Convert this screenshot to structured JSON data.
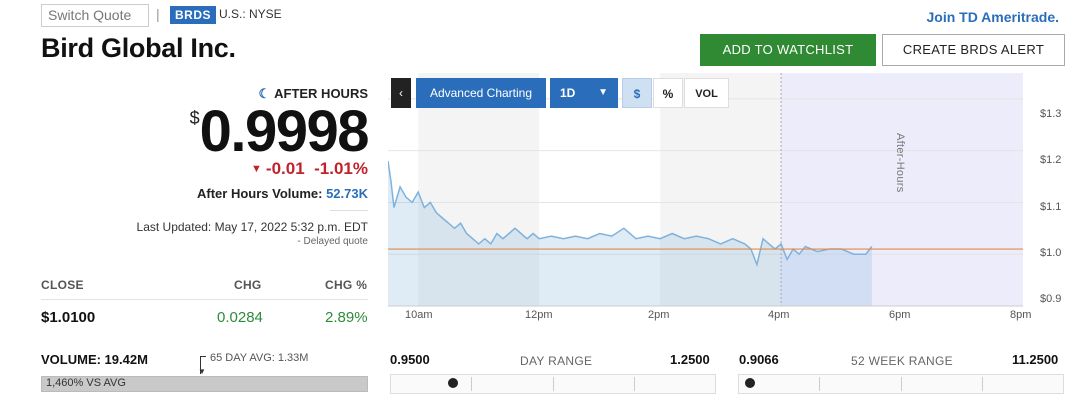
{
  "header": {
    "switch_quote_placeholder": "Switch Quote",
    "separator": "|",
    "ticker": "BRDS",
    "exchange": "U.S.: NYSE",
    "join_link": "Join TD Ameritrade."
  },
  "company": {
    "name": "Bird Global Inc."
  },
  "actions": {
    "watchlist_label": "ADD TO WATCHLIST",
    "alert_label": "CREATE BRDS ALERT",
    "watchlist_color": "#2f8a33"
  },
  "quote": {
    "session_label": "AFTER HOURS",
    "currency_symbol": "$",
    "price": "0.9998",
    "change": "-0.01",
    "change_pct": "-1.01%",
    "volume_label": "After Hours Volume:",
    "volume_value": "52.73K",
    "last_updated": "Last Updated: May 17, 2022 5:32 p.m. EDT",
    "delayed": "- Delayed quote",
    "down_color": "#c0232c"
  },
  "close_table": {
    "headers": [
      "CLOSE",
      "CHG",
      "CHG %"
    ],
    "values": [
      "$1.0100",
      "0.0284",
      "2.89%"
    ]
  },
  "volume": {
    "label": "VOLUME: 19.42M",
    "avg_label": "65 DAY AVG: 1.33M",
    "vs_avg": "1,460% VS AVG"
  },
  "chart_controls": {
    "back": "‹",
    "advanced": "Advanced Charting",
    "range": "1D",
    "dollar": "$",
    "percent": "%",
    "vol": "VOL"
  },
  "chart_data": {
    "type": "area",
    "annotation": "After-Hours",
    "y_ticks": [
      "$1.3",
      "$1.2",
      "$1.1",
      "$1.0",
      "$0.9"
    ],
    "x_ticks": [
      "10am",
      "12pm",
      "2pm",
      "4pm",
      "6pm",
      "8pm"
    ],
    "ylim": [
      0.9,
      1.35
    ],
    "xlim": [
      9.5,
      20
    ],
    "previous_close": 1.01,
    "series": [
      {
        "x": [
          9.5,
          9.55,
          9.6,
          9.7,
          9.8,
          9.9,
          10.0,
          10.1,
          10.2,
          10.3,
          10.4,
          10.5,
          10.6,
          10.7,
          10.8,
          10.9,
          11.0,
          11.1,
          11.2,
          11.3,
          11.4,
          11.5,
          11.6,
          11.7,
          11.8,
          11.9,
          12.0,
          12.2,
          12.4,
          12.6,
          12.8,
          13.0,
          13.2,
          13.4,
          13.6,
          13.8,
          14.0,
          14.2,
          14.4,
          14.6,
          14.8,
          15.0,
          15.2,
          15.4,
          15.5,
          15.6,
          15.7,
          15.8,
          15.9,
          16.0,
          16.1,
          16.2,
          16.3,
          16.4,
          16.6,
          16.8,
          17.0,
          17.2,
          17.4,
          17.5
        ],
        "values": [
          1.18,
          1.14,
          1.09,
          1.13,
          1.11,
          1.1,
          1.12,
          1.09,
          1.1,
          1.08,
          1.07,
          1.06,
          1.05,
          1.06,
          1.04,
          1.03,
          1.02,
          1.03,
          1.02,
          1.04,
          1.03,
          1.04,
          1.05,
          1.04,
          1.03,
          1.04,
          1.03,
          1.035,
          1.03,
          1.035,
          1.03,
          1.04,
          1.035,
          1.05,
          1.03,
          1.035,
          1.03,
          1.04,
          1.03,
          1.035,
          1.03,
          1.02,
          1.03,
          1.02,
          1.01,
          0.98,
          1.03,
          1.02,
          1.01,
          1.02,
          0.99,
          1.01,
          1.0,
          1.015,
          1.005,
          1.01,
          1.01,
          1.0,
          1.0,
          1.015
        ],
        "color": "#7fb2dc"
      }
    ],
    "line_color_prev_close": "#e08a4a",
    "after_hours_fill": "#ececfb"
  },
  "day_range": {
    "low": "0.9500",
    "title": "DAY RANGE",
    "high": "1.2500",
    "position": 0.17
  },
  "week52_range": {
    "low": "0.9066",
    "title": "52 WEEK RANGE",
    "high": "11.2500",
    "position": 0.01
  }
}
